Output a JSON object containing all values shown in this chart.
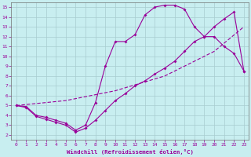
{
  "background_color": "#c8eef0",
  "line_color": "#990099",
  "xlabel": "Windchill (Refroidissement éolien,°C)",
  "xlim": [
    -0.5,
    23.5
  ],
  "ylim": [
    1.5,
    15.5
  ],
  "x_ticks": [
    0,
    1,
    2,
    3,
    4,
    5,
    6,
    7,
    8,
    9,
    10,
    11,
    12,
    13,
    14,
    15,
    16,
    17,
    18,
    19,
    20,
    21,
    22,
    23
  ],
  "y_ticks": [
    2,
    3,
    4,
    5,
    6,
    7,
    8,
    9,
    10,
    11,
    12,
    13,
    14,
    15
  ],
  "curve_upper_x": [
    0,
    1,
    2,
    3,
    4,
    5,
    6,
    7,
    8,
    9,
    10,
    11,
    12,
    13,
    14,
    15,
    16,
    17,
    18,
    19,
    20,
    21,
    22,
    23
  ],
  "curve_upper_y": [
    5.0,
    4.9,
    4.0,
    3.8,
    3.5,
    3.2,
    2.5,
    3.0,
    5.3,
    9.0,
    11.5,
    11.5,
    12.2,
    14.2,
    15.0,
    15.2,
    15.2,
    14.8,
    13.0,
    12.0,
    12.0,
    11.0,
    10.3,
    8.5
  ],
  "curve_mid_x": [
    0,
    5,
    10,
    15,
    20,
    23
  ],
  "curve_mid_y": [
    5.0,
    5.5,
    6.5,
    8.0,
    10.5,
    13.0
  ],
  "curve_lower_x": [
    0,
    1,
    2,
    3,
    4,
    5,
    6,
    7,
    8,
    9,
    10,
    11,
    12,
    13,
    14,
    15,
    16,
    17,
    18,
    19,
    20,
    21,
    22,
    23
  ],
  "curve_lower_y": [
    5.0,
    4.8,
    3.9,
    3.6,
    3.3,
    3.0,
    2.3,
    2.7,
    3.5,
    4.5,
    5.5,
    6.2,
    7.0,
    7.5,
    8.2,
    8.8,
    9.5,
    10.5,
    11.5,
    12.0,
    13.0,
    13.8,
    14.5,
    8.5
  ]
}
